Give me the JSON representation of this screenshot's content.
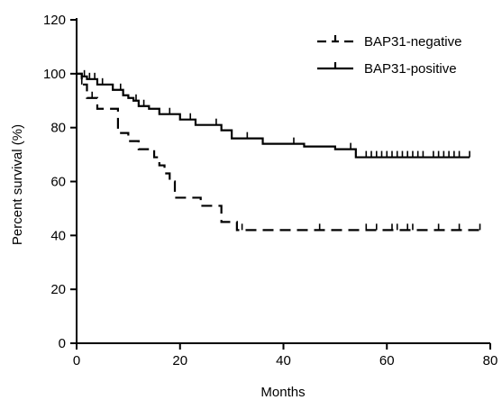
{
  "chart_data": {
    "type": "line",
    "title": "",
    "xlabel": "Months",
    "ylabel": "Percent survival (%)",
    "xlim": [
      0,
      80
    ],
    "ylim": [
      0,
      120
    ],
    "x_ticks": [
      "0",
      "20",
      "40",
      "60",
      "80"
    ],
    "y_ticks": [
      "0",
      "20",
      "40",
      "60",
      "80",
      "100",
      "120"
    ],
    "grid": false,
    "legend_position": "top-right",
    "step": true,
    "series": [
      {
        "name": "BAP31-negative",
        "style": "dashed",
        "color": "#000000",
        "x": [
          0,
          1,
          2,
          4,
          8,
          10,
          12,
          15,
          16,
          17,
          18,
          19,
          24,
          28,
          31,
          78
        ],
        "y": [
          100,
          96,
          91,
          87,
          78,
          75,
          72,
          69,
          66,
          63,
          60,
          54,
          51,
          45,
          42,
          42
        ],
        "censored": [
          {
            "x": 1,
            "y": 96
          },
          {
            "x": 3,
            "y": 91
          },
          {
            "x": 32,
            "y": 42
          },
          {
            "x": 47,
            "y": 42
          },
          {
            "x": 56,
            "y": 42
          },
          {
            "x": 58,
            "y": 42
          },
          {
            "x": 61,
            "y": 42
          },
          {
            "x": 62,
            "y": 42
          },
          {
            "x": 64,
            "y": 42
          },
          {
            "x": 65,
            "y": 42
          },
          {
            "x": 70,
            "y": 42
          },
          {
            "x": 74,
            "y": 42
          },
          {
            "x": 78,
            "y": 42
          }
        ]
      },
      {
        "name": "BAP31-positive",
        "style": "solid",
        "color": "#000000",
        "x": [
          0,
          1,
          2,
          4,
          7,
          9,
          10,
          11,
          12,
          14,
          16,
          20,
          23,
          28,
          30,
          36,
          44,
          50,
          54,
          76
        ],
        "y": [
          100,
          99,
          98,
          96,
          94,
          92,
          91,
          90,
          88,
          87,
          85,
          83,
          81,
          79,
          76,
          74,
          73,
          72,
          69,
          69
        ],
        "censored": [
          {
            "x": 1.5,
            "y": 99
          },
          {
            "x": 2.5,
            "y": 98
          },
          {
            "x": 3.5,
            "y": 98
          },
          {
            "x": 5,
            "y": 96
          },
          {
            "x": 8.5,
            "y": 94
          },
          {
            "x": 11.5,
            "y": 90
          },
          {
            "x": 13,
            "y": 88
          },
          {
            "x": 18,
            "y": 85
          },
          {
            "x": 22,
            "y": 83
          },
          {
            "x": 27,
            "y": 81
          },
          {
            "x": 33,
            "y": 76
          },
          {
            "x": 42,
            "y": 74
          },
          {
            "x": 53,
            "y": 72
          },
          {
            "x": 56,
            "y": 69
          },
          {
            "x": 57,
            "y": 69
          },
          {
            "x": 58,
            "y": 69
          },
          {
            "x": 59,
            "y": 69
          },
          {
            "x": 60,
            "y": 69
          },
          {
            "x": 61,
            "y": 69
          },
          {
            "x": 62,
            "y": 69
          },
          {
            "x": 63,
            "y": 69
          },
          {
            "x": 64,
            "y": 69
          },
          {
            "x": 65,
            "y": 69
          },
          {
            "x": 66,
            "y": 69
          },
          {
            "x": 67,
            "y": 69
          },
          {
            "x": 69,
            "y": 69
          },
          {
            "x": 70,
            "y": 69
          },
          {
            "x": 71,
            "y": 69
          },
          {
            "x": 72,
            "y": 69
          },
          {
            "x": 73,
            "y": 69
          },
          {
            "x": 74,
            "y": 69
          },
          {
            "x": 76,
            "y": 69
          }
        ]
      }
    ]
  }
}
